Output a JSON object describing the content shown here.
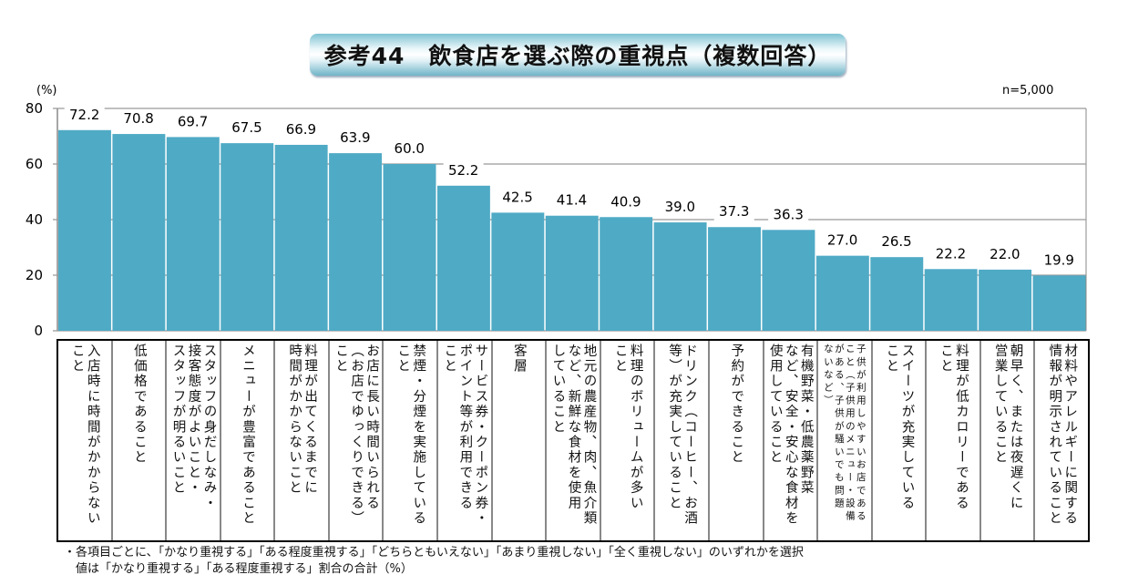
{
  "title": "参考44　飲食店を選ぶ際の重視点（複数回答）",
  "sample": "n=5,000",
  "notes": [
    "・各項目ごとに、「かなり重視する」「ある程度重視する」「どちらともいえない」「あまり重視しない」「全く重視しない」のいずれかを選択",
    "　値は「かなり重視する」「ある程度重視する」割合の合計（%）"
  ],
  "colors": {
    "bar": "#4faac5",
    "grid": "#999999"
  },
  "chart_data": {
    "type": "bar",
    "title": "参考44　飲食店を選ぶ際の重視点（複数回答）",
    "ylabel": "(%)",
    "ylim": [
      0,
      80
    ],
    "yticks": [
      "0",
      "20",
      "40",
      "60",
      "80"
    ],
    "grid": true,
    "categories": [
      "入店時に時間がかからない\nこと",
      "低価格であること",
      "スタッフの身だしなみ・\n接客態度がよいこと・\nスタッフが明るいこと",
      "メニューが豊富であること",
      "料理が出てくるまでに\n時間がかからないこと",
      "お店に長い時間いられる\n（お店でゆっくりできる）\nこと",
      "禁煙・分煙を実施している\nこと",
      "サービス券・クーポン券・\nポイント等が利用できる\nこと",
      "客層",
      "地元の農産物、肉、魚介類\nなど、新鮮な食材を使用\nしていること",
      "料理のボリュームが多い\nこと",
      "ドリンク（コーヒー、お酒\n等）が充実していること",
      "予約ができること",
      "有機野菜・低農薬野菜\nなど、安全・安心な食材を\n使用していること",
      "子供が利用しやすいお店である\nこと（子供用のメニュー・設備\nがある、子供が騒いでも問題\nないなど）",
      "スイーツが充実している\nこと",
      "料理が低カロリーである\nこと",
      "朝早く、または夜遅くに\n営業していること",
      "材料やアレルギーに関する\n情報が明示されていること"
    ],
    "values": [
      72.2,
      70.8,
      69.7,
      67.5,
      66.9,
      63.9,
      60.0,
      52.2,
      42.5,
      41.4,
      40.9,
      39.0,
      37.3,
      36.3,
      27.0,
      26.5,
      22.2,
      22.0,
      19.9
    ],
    "value_labels": [
      "72.2",
      "70.8",
      "69.7",
      "67.5",
      "66.9",
      "63.9",
      "60.0",
      "52.2",
      "42.5",
      "41.4",
      "40.9",
      "39.0",
      "37.3",
      "36.3",
      "27.0",
      "26.5",
      "22.2",
      "22.0",
      "19.9"
    ]
  }
}
